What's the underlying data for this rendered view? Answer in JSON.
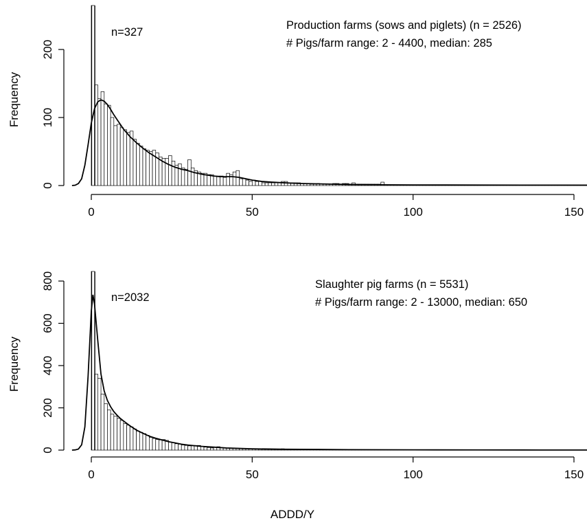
{
  "figure": {
    "xlabel": "ADDD/Y"
  },
  "chart_data": [
    {
      "type": "bar",
      "panel": "production",
      "ylabel": "Frequency",
      "overflow_label": "n=327",
      "annotation_lines": [
        "Production farms (sows and piglets) (n = 2526)",
        "# Pigs/farm range: 2 - 4400, median: 285"
      ],
      "xticks": [
        0,
        50,
        100,
        150
      ],
      "yticks": [
        0,
        100,
        200
      ],
      "xlim": [
        -6,
        155
      ],
      "ylim": [
        0,
        255
      ],
      "bin_width": 1,
      "bin_start": 0,
      "overflow_value": 327,
      "values": [
        327,
        148,
        128,
        138,
        120,
        118,
        100,
        88,
        90,
        85,
        82,
        78,
        80,
        68,
        62,
        58,
        54,
        52,
        50,
        52,
        48,
        42,
        40,
        40,
        44,
        36,
        30,
        32,
        26,
        24,
        38,
        26,
        22,
        20,
        18,
        18,
        16,
        16,
        14,
        14,
        14,
        12,
        18,
        16,
        20,
        22,
        10,
        10,
        8,
        6,
        8,
        6,
        6,
        4,
        4,
        4,
        4,
        4,
        4,
        6,
        6,
        4,
        4,
        4,
        4,
        3,
        3,
        3,
        2,
        2,
        3,
        2,
        2,
        2,
        2,
        3,
        3,
        2,
        3,
        3,
        2,
        4,
        2,
        2,
        2,
        2,
        2,
        2,
        2,
        2,
        5,
        1,
        1,
        1,
        1,
        1,
        1,
        1,
        1,
        1,
        1,
        1,
        1,
        1,
        1,
        1,
        1,
        1,
        1,
        1,
        1,
        1,
        1,
        1,
        1,
        1,
        1,
        1,
        1,
        1,
        1,
        1,
        1,
        1,
        1,
        1,
        1,
        1,
        1,
        1,
        1,
        1,
        1,
        1,
        1,
        1,
        1,
        1,
        1,
        1,
        1,
        1,
        1,
        1,
        1,
        1,
        1,
        1,
        1,
        1,
        1,
        1,
        1,
        1,
        1
      ],
      "density_peak": {
        "x": 3,
        "y": 126
      },
      "density_curve": [
        [
          -6,
          0
        ],
        [
          -5,
          0.5
        ],
        [
          -4,
          3
        ],
        [
          -3,
          10
        ],
        [
          -2,
          30
        ],
        [
          -1,
          60
        ],
        [
          0,
          92
        ],
        [
          1,
          113
        ],
        [
          2,
          123
        ],
        [
          3,
          126
        ],
        [
          4,
          124
        ],
        [
          5,
          119
        ],
        [
          6,
          112
        ],
        [
          7,
          104
        ],
        [
          8,
          97
        ],
        [
          9,
          90
        ],
        [
          10,
          83
        ],
        [
          12,
          72
        ],
        [
          14,
          63
        ],
        [
          16,
          55
        ],
        [
          18,
          48
        ],
        [
          20,
          42
        ],
        [
          22,
          36
        ],
        [
          24,
          31
        ],
        [
          26,
          27
        ],
        [
          28,
          24
        ],
        [
          30,
          22
        ],
        [
          32,
          19
        ],
        [
          35,
          16
        ],
        [
          38,
          14
        ],
        [
          40,
          13
        ],
        [
          42,
          13
        ],
        [
          44,
          13
        ],
        [
          46,
          12
        ],
        [
          48,
          10
        ],
        [
          50,
          8
        ],
        [
          53,
          6
        ],
        [
          56,
          5
        ],
        [
          60,
          4
        ],
        [
          65,
          3
        ],
        [
          70,
          2.5
        ],
        [
          75,
          2
        ],
        [
          80,
          1.6
        ],
        [
          90,
          1.1
        ],
        [
          100,
          0.9
        ],
        [
          110,
          0.8
        ],
        [
          120,
          0.7
        ],
        [
          135,
          0.6
        ],
        [
          145,
          0.6
        ],
        [
          155,
          0.5
        ]
      ]
    },
    {
      "type": "bar",
      "panel": "slaughter",
      "ylabel": "Frequency",
      "overflow_label": "n=2032",
      "annotation_lines": [
        "Slaughter pig farms (n = 5531)",
        "# Pigs/farm range: 2 - 13000, median: 650"
      ],
      "xticks": [
        0,
        50,
        100,
        150
      ],
      "yticks": [
        0,
        200,
        400,
        600,
        800
      ],
      "xlim": [
        -6,
        155
      ],
      "ylim": [
        0,
        850
      ],
      "bin_width": 1,
      "bin_start": 0,
      "overflow_value": 2032,
      "values": [
        2032,
        360,
        340,
        265,
        220,
        190,
        170,
        160,
        150,
        140,
        125,
        118,
        110,
        100,
        90,
        84,
        78,
        70,
        60,
        55,
        50,
        48,
        50,
        46,
        38,
        36,
        30,
        28,
        24,
        22,
        20,
        20,
        22,
        22,
        18,
        14,
        12,
        10,
        14,
        16,
        12,
        10,
        10,
        8,
        8,
        8,
        8,
        8,
        6,
        6,
        6,
        6,
        4,
        4,
        4,
        4,
        4,
        4,
        4,
        6,
        4,
        4,
        3,
        3,
        3,
        3,
        3,
        3,
        3,
        3,
        4,
        3,
        3,
        2,
        2,
        2,
        2,
        2,
        2,
        2,
        2,
        1,
        1,
        1,
        1,
        1,
        1,
        1,
        1,
        1,
        1,
        1,
        1,
        1,
        1,
        1,
        1,
        1,
        1,
        1,
        1,
        1,
        1,
        1,
        1,
        1,
        1,
        1,
        1,
        1,
        1,
        1,
        1,
        1,
        1,
        1,
        1,
        1,
        1,
        1,
        1,
        1,
        1,
        1,
        1,
        1,
        1,
        1,
        1,
        1,
        1,
        1,
        1,
        1,
        1,
        1,
        1,
        1,
        1,
        1,
        1,
        1,
        1,
        1,
        1,
        1,
        1,
        1,
        1,
        1
      ],
      "density_peak": {
        "x": 0.5,
        "y": 735
      },
      "density_curve": [
        [
          -6,
          0
        ],
        [
          -5,
          1
        ],
        [
          -4,
          5
        ],
        [
          -3,
          25
        ],
        [
          -2,
          110
        ],
        [
          -1,
          350
        ],
        [
          0,
          660
        ],
        [
          0.5,
          735
        ],
        [
          1,
          690
        ],
        [
          2,
          520
        ],
        [
          3,
          360
        ],
        [
          4,
          280
        ],
        [
          5,
          235
        ],
        [
          6,
          205
        ],
        [
          7,
          182
        ],
        [
          8,
          165
        ],
        [
          9,
          150
        ],
        [
          10,
          138
        ],
        [
          12,
          115
        ],
        [
          14,
          95
        ],
        [
          16,
          80
        ],
        [
          18,
          66
        ],
        [
          20,
          56
        ],
        [
          22,
          48
        ],
        [
          24,
          40
        ],
        [
          26,
          34
        ],
        [
          28,
          28
        ],
        [
          30,
          24
        ],
        [
          34,
          18
        ],
        [
          38,
          14
        ],
        [
          42,
          10
        ],
        [
          46,
          8
        ],
        [
          50,
          6
        ],
        [
          55,
          5
        ],
        [
          60,
          4
        ],
        [
          70,
          3
        ],
        [
          80,
          2
        ],
        [
          100,
          1.2
        ],
        [
          120,
          0.8
        ],
        [
          140,
          0.5
        ],
        [
          155,
          0.4
        ]
      ]
    }
  ]
}
